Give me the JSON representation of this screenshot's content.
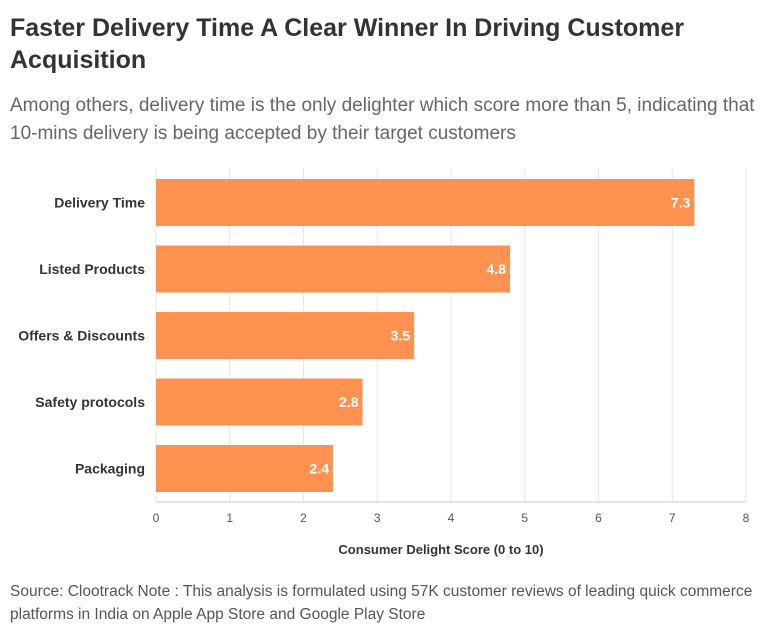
{
  "title": "Faster Delivery Time A Clear Winner In Driving Customer Acquisition",
  "subtitle": "Among others, delivery time is the only delighter which score more than 5, indicating that 10-mins delivery is being accepted by their target customers",
  "source": "Source: Clootrack Note : This analysis is formulated using 57K customer reviews of leading quick commerce platforms in India on Apple App Store and Google Play Store",
  "chart_data": {
    "type": "bar",
    "orientation": "horizontal",
    "categories": [
      "Delivery Time",
      "Listed Products",
      "Offers & Discounts",
      "Safety protocols",
      "Packaging"
    ],
    "values": [
      7.3,
      4.8,
      3.5,
      2.8,
      2.4
    ],
    "xlabel": "Consumer Delight Score (0 to 10)",
    "xlim": [
      0,
      8
    ],
    "xticks": [
      "0",
      "1",
      "2",
      "3",
      "4",
      "5",
      "6",
      "7",
      "8"
    ],
    "bar_color": "#ff9151",
    "grid": "vertical",
    "data_labels": [
      "7.3",
      "4.8",
      "3.5",
      "2.8",
      "2.4"
    ]
  }
}
